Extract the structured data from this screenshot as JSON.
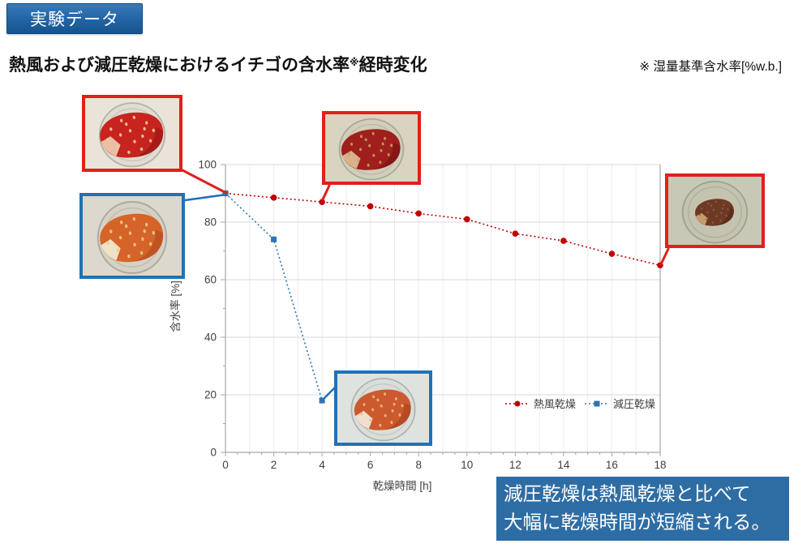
{
  "badge": {
    "label": "実験データ",
    "bg": "#2467a8",
    "text_color": "#ffffff"
  },
  "title": {
    "main": "熱風および減圧乾燥におけるイチゴの含水率",
    "sup": "※",
    "tail": "経時変化"
  },
  "note": {
    "text": "※ 湿量基準含水率[%w.b.]"
  },
  "chart_data": {
    "type": "line",
    "title": "",
    "xlabel": "乾燥時間 [h]",
    "ylabel": "含水率 [%]",
    "xlim": [
      0,
      18
    ],
    "ylim": [
      0,
      100
    ],
    "x_ticks": [
      0,
      2,
      4,
      6,
      8,
      10,
      12,
      14,
      16,
      18
    ],
    "y_ticks": [
      0,
      20,
      40,
      60,
      80,
      100
    ],
    "grid": true,
    "legend_position": "inside-right-middle",
    "series": [
      {
        "name": "熱風乾燥",
        "color": "#c00000",
        "marker": "circle",
        "line_style": "dotted",
        "x": [
          0,
          2,
          4,
          6,
          8,
          10,
          12,
          14,
          16,
          18
        ],
        "values": [
          90,
          88.5,
          87,
          85.5,
          83,
          81,
          76,
          73.5,
          69,
          65
        ]
      },
      {
        "name": "減圧乾燥",
        "color": "#2e74b5",
        "marker": "square",
        "line_style": "dotted",
        "x": [
          0,
          2,
          4
        ],
        "values": [
          90,
          74,
          18
        ]
      }
    ]
  },
  "photos": [
    {
      "name": "photo-fresh-strawberry",
      "frame": "red",
      "border_color": "#e0201c",
      "bg": "#e9e3da",
      "dish": "#d8d2c8",
      "berry": "#c8241f",
      "berry_dark": "#821412",
      "cut": "#eabfa6",
      "seeds": "#f0cf96",
      "scale": 1.0
    },
    {
      "name": "photo-vacuum-dried-start",
      "frame": "blue",
      "border_color": "#1f72b8",
      "bg": "#dcd8cd",
      "dish": "#cfcabd",
      "berry": "#d66428",
      "berry_dark": "#a8441c",
      "cut": "#efe2c6",
      "seeds": "#ecca8e",
      "scale": 0.95
    },
    {
      "name": "photo-hot-air-4h",
      "frame": "red",
      "border_color": "#e0201c",
      "bg": "#d8d4c0",
      "dish": "#ccc8b2",
      "berry": "#a01f1c",
      "berry_dark": "#6a1210",
      "cut": "#d8b28c",
      "seeds": "#c89e66",
      "scale": 0.95
    },
    {
      "name": "photo-hot-air-18h",
      "frame": "red",
      "border_color": "#e0201c",
      "bg": "#c8c8b6",
      "dish": "#bdbda9",
      "berry": "#6e3a24",
      "berry_dark": "#46migrate2315",
      "cut": "#c49e70",
      "seeds": "#8a6a48",
      "scale": 0.62
    },
    {
      "name": "photo-vacuum-4h",
      "frame": "blue",
      "border_color": "#1f72b8",
      "bg": "#dfe3df",
      "dish": "#d2d7d2",
      "berry": "#cd5a2e",
      "berry_dark": "#a03a1a",
      "cut": "#f0decf",
      "seeds": "#e8be86",
      "scale": 0.92
    }
  ],
  "caption_box": {
    "lines": [
      "減圧乾燥は熱風乾燥と比べて",
      "大幅に乾燥時間が短縮される。"
    ],
    "bg": "#2e6da4",
    "text_color": "#ffffff"
  }
}
